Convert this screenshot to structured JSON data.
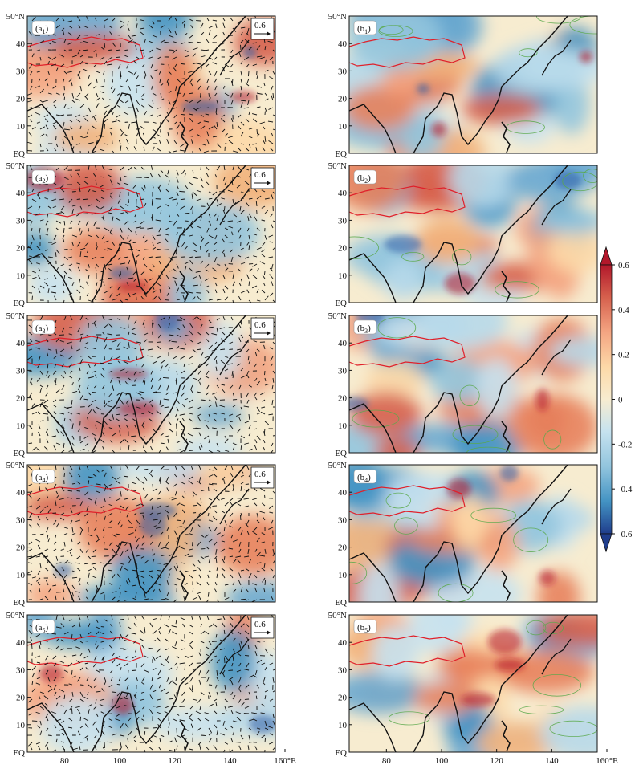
{
  "figure": {
    "left_column": {
      "panels": [
        {
          "label_main": "(a",
          "label_sub": "1",
          "label_close": ")",
          "reference_vector": "0.6"
        },
        {
          "label_main": "(a",
          "label_sub": "2",
          "label_close": ")",
          "reference_vector": "0.6"
        },
        {
          "label_main": "(a",
          "label_sub": "3",
          "label_close": ")",
          "reference_vector": "0.6"
        },
        {
          "label_main": "(a",
          "label_sub": "4",
          "label_close": ")",
          "reference_vector": "0.6"
        },
        {
          "label_main": "(a",
          "label_sub": "5",
          "label_close": ")",
          "reference_vector": "0.6"
        }
      ]
    },
    "right_column": {
      "panels": [
        {
          "label_main": "(b",
          "label_sub": "1",
          "label_close": ")"
        },
        {
          "label_main": "(b",
          "label_sub": "2",
          "label_close": ")"
        },
        {
          "label_main": "(b",
          "label_sub": "3",
          "label_close": ")"
        },
        {
          "label_main": "(b",
          "label_sub": "4",
          "label_close": ")"
        },
        {
          "label_main": "(b",
          "label_sub": "5",
          "label_close": ")"
        }
      ]
    },
    "y_axis_labels": [
      "50°N",
      "40",
      "30",
      "20",
      "10",
      "EQ"
    ],
    "x_axis_labels": [
      "80",
      "100",
      "120",
      "140",
      "160°E"
    ],
    "colorbar": {
      "tick_labels": [
        "0.6",
        "0.4",
        "0.2",
        "0",
        "-0.2",
        "-0.4",
        "-0.6"
      ],
      "colors": [
        "#b2182b",
        "#d6604d",
        "#f4a582",
        "#fdd9a8",
        "#f7ecd0",
        "#e0f3f8",
        "#c6e2ef",
        "#92c5de",
        "#4393c3",
        "#2f5fa8",
        "#1f3d8c"
      ]
    }
  },
  "chart_data": [
    {
      "type": "heatmap",
      "panel": "(a1)",
      "x_range": [
        70,
        160
      ],
      "y_range": [
        0,
        50
      ],
      "x_unit": "°E",
      "y_unit": "°N",
      "overlay": "wind vectors",
      "reference_vector": 0.6
    },
    {
      "type": "heatmap",
      "panel": "(a2)",
      "x_range": [
        70,
        160
      ],
      "y_range": [
        0,
        50
      ],
      "overlay": "wind vectors",
      "reference_vector": 0.6
    },
    {
      "type": "heatmap",
      "panel": "(a3)",
      "x_range": [
        70,
        160
      ],
      "y_range": [
        0,
        50
      ],
      "overlay": "wind vectors",
      "reference_vector": 0.6
    },
    {
      "type": "heatmap",
      "panel": "(a4)",
      "x_range": [
        70,
        160
      ],
      "y_range": [
        0,
        50
      ],
      "overlay": "wind vectors",
      "reference_vector": 0.6
    },
    {
      "type": "heatmap",
      "panel": "(a5)",
      "x_range": [
        70,
        160
      ],
      "y_range": [
        0,
        50
      ],
      "overlay": "wind vectors",
      "reference_vector": 0.6
    },
    {
      "type": "heatmap",
      "panel": "(b1)",
      "x_range": [
        70,
        160
      ],
      "y_range": [
        0,
        50
      ]
    },
    {
      "type": "heatmap",
      "panel": "(b2)",
      "x_range": [
        70,
        160
      ],
      "y_range": [
        0,
        50
      ]
    },
    {
      "type": "heatmap",
      "panel": "(b3)",
      "x_range": [
        70,
        160
      ],
      "y_range": [
        0,
        50
      ]
    },
    {
      "type": "heatmap",
      "panel": "(b4)",
      "x_range": [
        70,
        160
      ],
      "y_range": [
        0,
        50
      ]
    },
    {
      "type": "heatmap",
      "panel": "(b5)",
      "x_range": [
        70,
        160
      ],
      "y_range": [
        0,
        50
      ]
    }
  ]
}
